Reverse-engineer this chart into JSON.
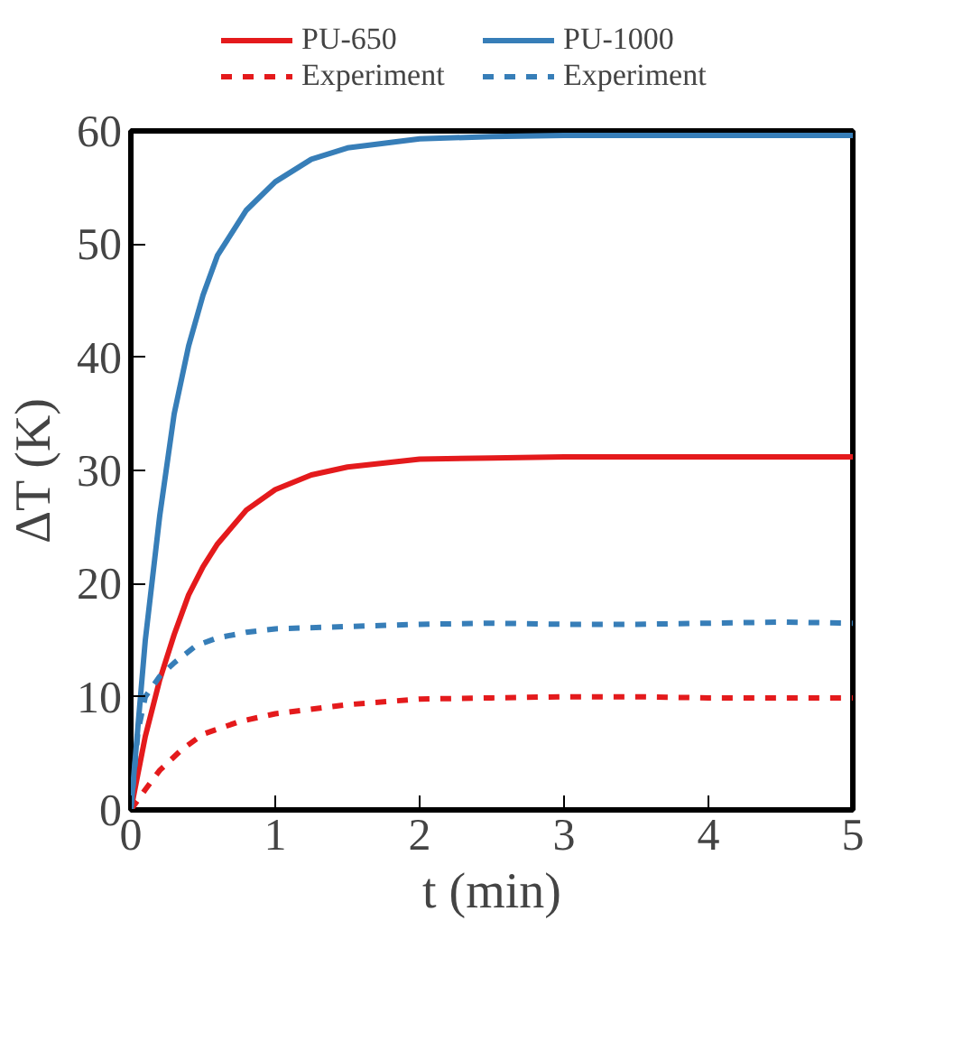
{
  "chart_data": {
    "type": "line",
    "xlabel": "t (min)",
    "ylabel": "ΔT (K)",
    "xlim": [
      0,
      5
    ],
    "ylim": [
      0,
      60
    ],
    "xticks": [
      0,
      1,
      2,
      3,
      4,
      5
    ],
    "yticks": [
      0,
      10,
      20,
      30,
      40,
      50,
      60
    ],
    "grid": false,
    "legend": "top",
    "series": [
      {
        "name": "PU-650",
        "color": "#e41a1c",
        "line_style": "solid",
        "x": [
          0,
          0.1,
          0.2,
          0.3,
          0.4,
          0.5,
          0.6,
          0.8,
          1,
          1.25,
          1.5,
          2,
          2.5,
          3,
          4,
          5
        ],
        "values": [
          0,
          6.5,
          11.5,
          15.5,
          19,
          21.5,
          23.5,
          26.5,
          28.3,
          29.6,
          30.3,
          31,
          31.1,
          31.2,
          31.2,
          31.2
        ]
      },
      {
        "name": "Experiment",
        "color": "#e41a1c",
        "line_style": "dashed",
        "x": [
          0,
          0.1,
          0.2,
          0.35,
          0.5,
          0.75,
          1,
          1.5,
          2,
          2.5,
          3,
          3.5,
          4,
          4.5,
          5
        ],
        "values": [
          0,
          1.8,
          3.5,
          5.3,
          6.7,
          7.8,
          8.5,
          9.3,
          9.8,
          9.9,
          10,
          10,
          9.9,
          9.9,
          9.9
        ]
      },
      {
        "name": "PU-1000",
        "color": "#377eb8",
        "line_style": "solid",
        "x": [
          0,
          0.1,
          0.2,
          0.3,
          0.4,
          0.5,
          0.6,
          0.8,
          1,
          1.25,
          1.5,
          2,
          2.5,
          3,
          4,
          5
        ],
        "values": [
          0,
          15,
          26,
          35,
          41,
          45.5,
          49,
          53,
          55.5,
          57.5,
          58.5,
          59.3,
          59.5,
          59.6,
          59.6,
          59.6
        ]
      },
      {
        "name": "Experiment",
        "color": "#377eb8",
        "line_style": "dashed",
        "x": [
          0,
          0.05,
          0.1,
          0.2,
          0.3,
          0.45,
          0.6,
          0.8,
          1,
          1.5,
          2,
          2.5,
          3,
          3.5,
          4,
          4.5,
          5
        ],
        "values": [
          0,
          7,
          10,
          11.8,
          13,
          14.5,
          15.2,
          15.7,
          16,
          16.2,
          16.4,
          16.5,
          16.4,
          16.4,
          16.5,
          16.6,
          16.5
        ]
      }
    ]
  }
}
